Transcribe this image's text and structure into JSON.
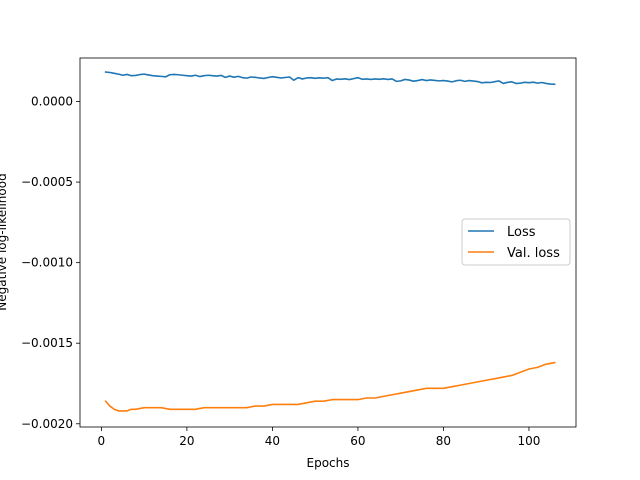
{
  "chart_data": {
    "type": "line",
    "title": "",
    "xlabel": "Epochs",
    "ylabel": "Negative log-likelihood",
    "xlim": [
      -5,
      111
    ],
    "ylim": [
      -0.00202,
      0.00027
    ],
    "xticks": [
      0,
      20,
      40,
      60,
      80,
      100
    ],
    "xtick_labels": [
      "0",
      "20",
      "40",
      "60",
      "80",
      "100"
    ],
    "yticks": [
      0.0,
      -0.0005,
      -0.001,
      -0.0015,
      -0.002
    ],
    "ytick_labels": [
      "0.0000",
      "−0.0005",
      "−0.0010",
      "−0.0015",
      "−0.0020"
    ],
    "grid": false,
    "legend_position": "center-right",
    "series": [
      {
        "name": "Loss",
        "color": "#1f77b4",
        "x": [
          1,
          2,
          3,
          4,
          5,
          6,
          7,
          8,
          9,
          10,
          11,
          12,
          13,
          14,
          15,
          16,
          17,
          18,
          19,
          20,
          21,
          22,
          23,
          24,
          25,
          26,
          27,
          28,
          29,
          30,
          31,
          32,
          33,
          34,
          35,
          36,
          37,
          38,
          39,
          40,
          41,
          42,
          43,
          44,
          45,
          46,
          47,
          48,
          49,
          50,
          51,
          52,
          53,
          54,
          55,
          56,
          57,
          58,
          59,
          60,
          61,
          62,
          63,
          64,
          65,
          66,
          67,
          68,
          69,
          70,
          71,
          72,
          73,
          74,
          75,
          76,
          77,
          78,
          79,
          80,
          81,
          82,
          83,
          84,
          85,
          86,
          87,
          88,
          89,
          90,
          91,
          92,
          93,
          94,
          95,
          96,
          97,
          98,
          99,
          100,
          101,
          102,
          103,
          104,
          105,
          106
        ],
        "y": [
          0.000183,
          0.00018,
          0.000175,
          0.00017,
          0.000163,
          0.000168,
          0.00016,
          0.000162,
          0.000167,
          0.00017,
          0.000165,
          0.00016,
          0.000158,
          0.000156,
          0.000153,
          0.000166,
          0.000168,
          0.000166,
          0.000163,
          0.00016,
          0.000158,
          0.000163,
          0.000155,
          0.00016,
          0.000163,
          0.00016,
          0.000158,
          0.000162,
          0.00015,
          0.000158,
          0.000151,
          0.000156,
          0.000148,
          0.000145,
          0.000152,
          0.00015,
          0.000146,
          0.000143,
          0.000149,
          0.000154,
          0.00015,
          0.000146,
          0.000149,
          0.000152,
          0.000132,
          0.000148,
          0.00014,
          0.000146,
          0.000148,
          0.000144,
          0.000147,
          0.000145,
          0.000148,
          0.00013,
          0.00014,
          0.000138,
          0.000141,
          0.000136,
          0.000142,
          0.000148,
          0.000138,
          0.00014,
          0.000137,
          0.00014,
          0.000138,
          0.000141,
          0.000137,
          0.00014,
          0.000125,
          0.000128,
          0.000137,
          0.000133,
          0.000126,
          0.00013,
          0.000136,
          0.00013,
          0.000134,
          0.000131,
          0.000128,
          0.00013,
          0.000127,
          0.000122,
          0.000129,
          0.000132,
          0.000125,
          0.00013,
          0.000127,
          0.000124,
          0.000116,
          0.000119,
          0.000118,
          0.000123,
          0.000128,
          0.000112,
          0.000119,
          0.000122,
          0.000112,
          0.000114,
          0.000119,
          0.000117,
          0.00012,
          0.000114,
          0.000118,
          0.000112,
          0.000108,
          0.000107
        ]
      },
      {
        "name": "Val. loss",
        "color": "#ff7f0e",
        "x": [
          1,
          2,
          3,
          4,
          5,
          6,
          7,
          8,
          10,
          12,
          14,
          16,
          18,
          20,
          22,
          24,
          26,
          28,
          30,
          32,
          34,
          36,
          38,
          40,
          42,
          44,
          46,
          48,
          50,
          52,
          54,
          56,
          58,
          60,
          62,
          64,
          66,
          68,
          70,
          72,
          74,
          76,
          78,
          80,
          82,
          84,
          86,
          88,
          90,
          92,
          94,
          96,
          98,
          100,
          102,
          104,
          106
        ],
        "y": [
          -0.00186,
          -0.00189,
          -0.00191,
          -0.00192,
          -0.00192,
          -0.00192,
          -0.00191,
          -0.00191,
          -0.0019,
          -0.0019,
          -0.0019,
          -0.00191,
          -0.00191,
          -0.00191,
          -0.00191,
          -0.0019,
          -0.0019,
          -0.0019,
          -0.0019,
          -0.0019,
          -0.0019,
          -0.00189,
          -0.00189,
          -0.00188,
          -0.00188,
          -0.00188,
          -0.00188,
          -0.00187,
          -0.00186,
          -0.00186,
          -0.00185,
          -0.00185,
          -0.00185,
          -0.00185,
          -0.00184,
          -0.00184,
          -0.00183,
          -0.00182,
          -0.00181,
          -0.0018,
          -0.00179,
          -0.00178,
          -0.00178,
          -0.00178,
          -0.00177,
          -0.00176,
          -0.00175,
          -0.00174,
          -0.00173,
          -0.00172,
          -0.00171,
          -0.0017,
          -0.00168,
          -0.00166,
          -0.00165,
          -0.00163,
          -0.00162
        ]
      }
    ]
  }
}
